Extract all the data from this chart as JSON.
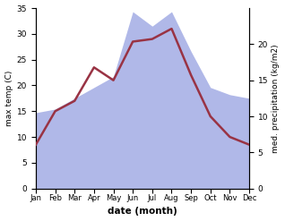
{
  "months": [
    "Jan",
    "Feb",
    "Mar",
    "Apr",
    "May",
    "Jun",
    "Jul",
    "Aug",
    "Sep",
    "Oct",
    "Nov",
    "Dec"
  ],
  "month_indices": [
    0,
    1,
    2,
    3,
    4,
    5,
    6,
    7,
    8,
    9,
    10,
    11
  ],
  "temperature": [
    8.5,
    15.0,
    17.0,
    23.5,
    21.0,
    28.5,
    29.0,
    31.0,
    22.0,
    14.0,
    10.0,
    8.5
  ],
  "precipitation": [
    10.5,
    11.0,
    12.5,
    14.0,
    15.5,
    24.5,
    22.5,
    24.5,
    19.0,
    14.0,
    13.0,
    12.5
  ],
  "temp_color": "#993344",
  "precip_color": "#b0b8e8",
  "title": "",
  "xlabel": "date (month)",
  "ylabel_left": "max temp (C)",
  "ylabel_right": "med. precipitation (kg/m2)",
  "ylim_left": [
    0,
    35
  ],
  "ylim_right": [
    0,
    25
  ],
  "yticks_left": [
    0,
    5,
    10,
    15,
    20,
    25,
    30,
    35
  ],
  "yticks_right": [
    0,
    5,
    10,
    15,
    20
  ],
  "background_color": "#ffffff",
  "figsize": [
    3.18,
    2.47
  ],
  "dpi": 100
}
